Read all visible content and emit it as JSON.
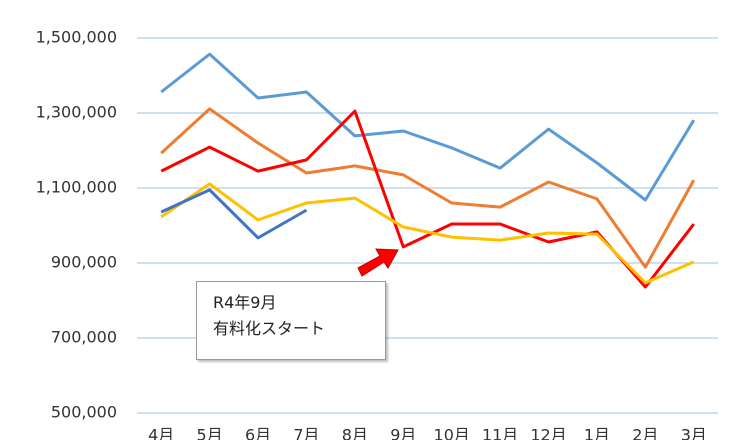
{
  "chart_data": {
    "type": "line",
    "categories": [
      "4月",
      "5月",
      "6月",
      "7月",
      "8月",
      "9月",
      "10月",
      "11月",
      "12月",
      "1月",
      "2月",
      "3月"
    ],
    "series": [
      {
        "color": "#5b9bd5",
        "values": [
          1356000,
          1457000,
          1340000,
          1356000,
          1239000,
          1252000,
          1207000,
          1153000,
          1257000,
          1167000,
          1068000,
          1281000
        ]
      },
      {
        "color": "#ed7d31",
        "values": [
          1193000,
          1311000,
          1220000,
          1140000,
          1159000,
          1135000,
          1060000,
          1049000,
          1116000,
          1071000,
          889000,
          1121000
        ]
      },
      {
        "color": "#ff0000",
        "values": [
          1145000,
          1209000,
          1145000,
          1175000,
          1305000,
          943000,
          1004000,
          1004000,
          956000,
          983000,
          836000,
          1004000
        ]
      },
      {
        "color": "#ffc000",
        "values": [
          1023000,
          1111000,
          1015000,
          1060000,
          1073000,
          996000,
          969000,
          961000,
          980000,
          977000,
          847000,
          903000
        ]
      },
      {
        "color": "#4472c4",
        "values": [
          1036000,
          1095000,
          967000,
          1041000,
          null,
          null,
          null,
          null,
          null,
          null,
          null,
          null
        ]
      }
    ],
    "ylim": [
      500000,
      1600000
    ],
    "yticks": [
      {
        "value": 500000,
        "label": "500,000"
      },
      {
        "value": 700000,
        "label": "700,000"
      },
      {
        "value": 900000,
        "label": "900,000"
      },
      {
        "value": 1100000,
        "label": "1,100,000"
      },
      {
        "value": 1300000,
        "label": "1,300,000"
      },
      {
        "value": 1500000,
        "label": "1,500,000"
      }
    ],
    "grid": true,
    "annotation": [
      "R4年9月",
      "有料化スタート"
    ]
  }
}
